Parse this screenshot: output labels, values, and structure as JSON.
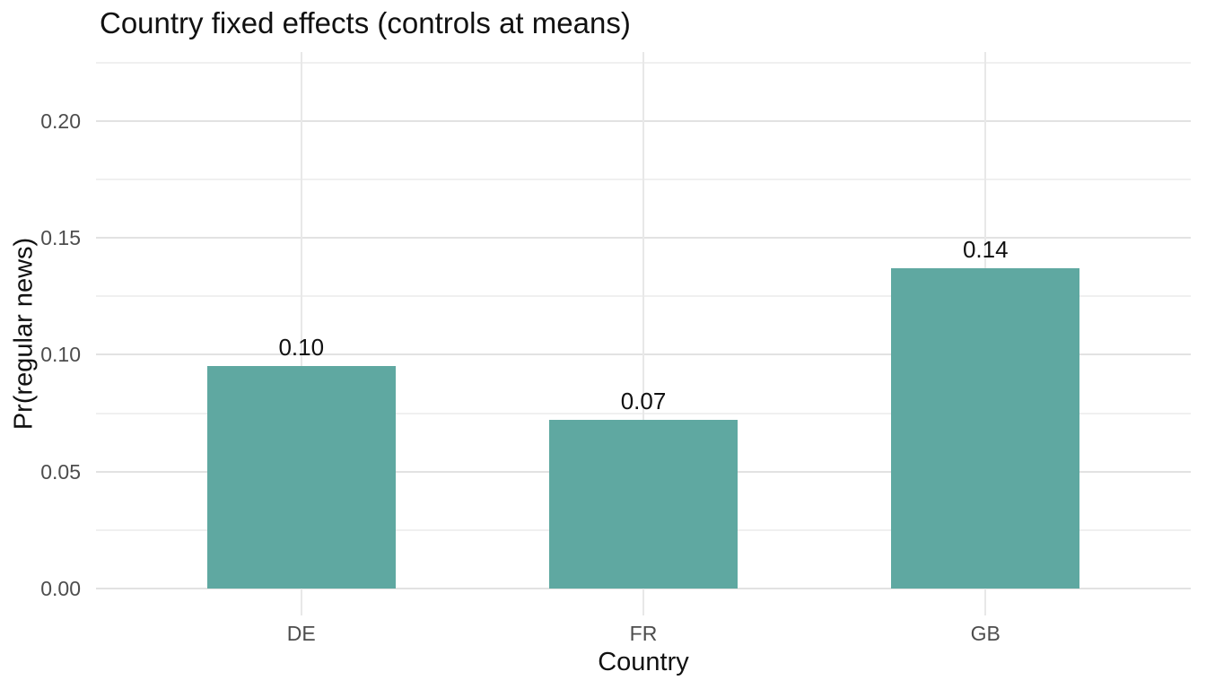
{
  "chart_data": {
    "type": "bar",
    "title": "Country fixed effects (controls at means)",
    "xlabel": "Country",
    "ylabel": "Pr(regular news)",
    "categories": [
      "DE",
      "FR",
      "GB"
    ],
    "values": [
      0.095,
      0.072,
      0.137
    ],
    "bar_labels": [
      "0.10",
      "0.07",
      "0.14"
    ],
    "ylim": [
      -0.0115,
      0.2295
    ],
    "ytick_values": [
      0.0,
      0.05,
      0.1,
      0.15,
      0.2
    ],
    "ytick_labels": [
      "0.00",
      "0.05",
      "0.10",
      "0.15",
      "0.20"
    ],
    "ytick_minor_values": [
      0.025,
      0.075,
      0.125,
      0.175,
      0.225
    ],
    "bar_width_fraction": 0.55,
    "bar_color": "#5FA8A1",
    "grid": true,
    "legend": false,
    "gridline_major_color": "#e2e2e2",
    "gridline_minor_color": "#f0f0f0",
    "gridline_vertical_color": "#e8e8e8",
    "tick_label_color": "#4d4d4d",
    "text_color": "#111111",
    "background_color": "#ffffff"
  }
}
